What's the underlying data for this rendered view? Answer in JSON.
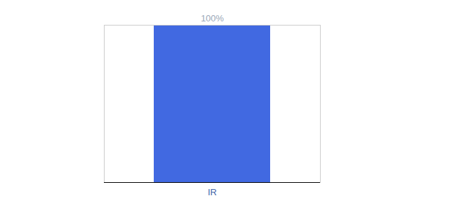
{
  "chart_data": {
    "type": "bar",
    "categories": [
      "IR"
    ],
    "values": [
      100
    ],
    "value_labels": [
      "100%"
    ],
    "color": "#4169E1",
    "ylim": [
      0,
      100
    ],
    "data_labels": true,
    "tick_labels": "x"
  }
}
